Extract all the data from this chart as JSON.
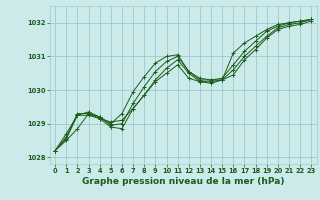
{
  "background_color": "#cceaea",
  "grid_color": "#99cccc",
  "line_color": "#1a5c1a",
  "marker_color": "#1a5c1a",
  "xlabel": "Graphe pression niveau de la mer (hPa)",
  "xlabel_fontsize": 6.5,
  "xlim": [
    -0.5,
    23.5
  ],
  "ylim": [
    1027.8,
    1032.5
  ],
  "yticks": [
    1028,
    1029,
    1030,
    1031,
    1032
  ],
  "xticks": [
    0,
    1,
    2,
    3,
    4,
    5,
    6,
    7,
    8,
    9,
    10,
    11,
    12,
    13,
    14,
    15,
    16,
    17,
    18,
    19,
    20,
    21,
    22,
    23
  ],
  "series1": {
    "x": [
      0,
      1,
      2,
      3,
      4,
      5,
      6,
      7,
      8,
      9,
      10,
      11,
      12,
      13,
      14,
      15,
      16,
      17,
      18,
      19,
      20,
      21,
      22,
      23
    ],
    "y": [
      1028.2,
      1028.7,
      1029.25,
      1029.35,
      1029.2,
      1029.0,
      1029.3,
      1029.95,
      1030.4,
      1030.8,
      1031.0,
      1031.05,
      1030.55,
      1030.35,
      1030.3,
      1030.3,
      1031.1,
      1031.4,
      1031.6,
      1031.8,
      1031.95,
      1032.0,
      1032.05,
      1032.1
    ]
  },
  "series2": {
    "x": [
      0,
      1,
      2,
      3,
      4,
      5,
      6,
      7,
      8,
      9,
      10,
      11,
      12,
      13,
      14,
      15,
      16,
      17,
      18,
      19,
      20,
      21,
      22,
      23
    ],
    "y": [
      1028.2,
      1028.6,
      1029.3,
      1029.3,
      1029.2,
      1028.95,
      1029.0,
      1029.6,
      1030.1,
      1030.55,
      1030.85,
      1031.0,
      1030.55,
      1030.3,
      1030.3,
      1030.35,
      1030.75,
      1031.15,
      1031.45,
      1031.75,
      1031.9,
      1032.0,
      1032.05,
      1032.1
    ]
  },
  "series3": {
    "x": [
      0,
      1,
      2,
      3,
      4,
      5,
      6,
      7,
      8,
      9,
      10,
      11,
      12,
      13,
      14,
      15,
      16,
      17,
      18,
      19,
      20,
      21,
      22,
      23
    ],
    "y": [
      1028.2,
      1028.55,
      1029.25,
      1029.25,
      1029.15,
      1028.9,
      1028.85,
      1029.45,
      1029.85,
      1030.3,
      1030.65,
      1030.9,
      1030.5,
      1030.25,
      1030.2,
      1030.3,
      1030.6,
      1031.0,
      1031.3,
      1031.6,
      1031.85,
      1031.95,
      1032.0,
      1032.1
    ]
  },
  "series4": {
    "x": [
      0,
      1,
      2,
      3,
      4,
      5,
      6,
      7,
      8,
      9,
      10,
      11,
      12,
      13,
      14,
      15,
      16,
      17,
      18,
      19,
      20,
      21,
      22,
      23
    ],
    "y": [
      1028.2,
      1028.5,
      1028.85,
      1029.3,
      1029.15,
      1029.05,
      1029.1,
      1029.45,
      1029.85,
      1030.25,
      1030.5,
      1030.75,
      1030.35,
      1030.25,
      1030.25,
      1030.3,
      1030.45,
      1030.9,
      1031.2,
      1031.55,
      1031.8,
      1031.9,
      1031.95,
      1032.05
    ]
  }
}
